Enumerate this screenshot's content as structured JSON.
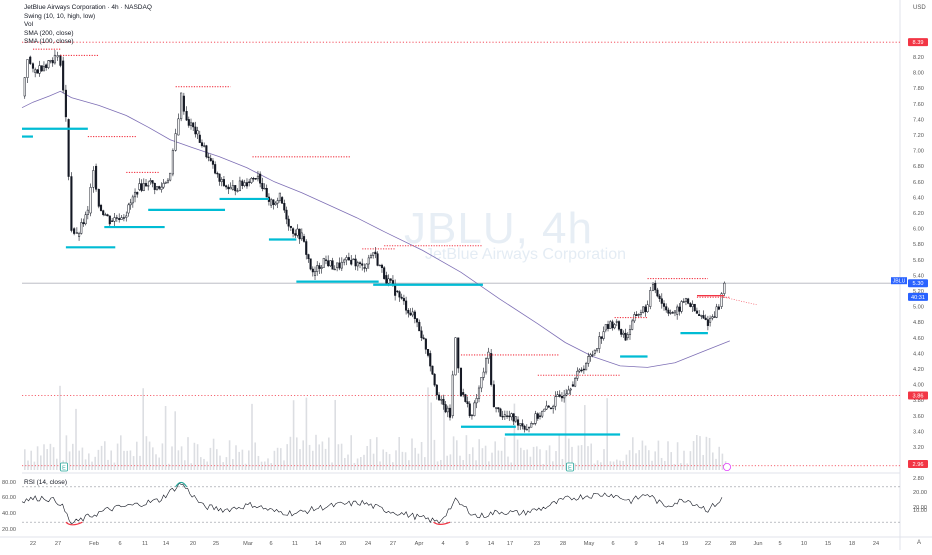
{
  "header": {
    "title": "JetBlue Airways Corporation · 4h · NASDAQ",
    "indicators": [
      "Swing (10, 10, high, low)",
      "Vol",
      "SMA (200, close)",
      "SMA (100, close)"
    ]
  },
  "watermark": {
    "ticker": "JBLU, 4h",
    "name": "JetBlue Airways Corporation"
  },
  "currency": "USD",
  "corner_label": "A",
  "rsi_panel": {
    "label": "RSI (14, close)",
    "left_ticks": [
      "80.00",
      "60.00",
      "40.00",
      "20.00"
    ],
    "right_ticks": [
      "20.00",
      "10.00"
    ]
  },
  "chart_data": {
    "type": "candlestick",
    "symbol": "JBLU",
    "timeframe": "4h",
    "y_ticks": [
      "8.20",
      "8.00",
      "7.80",
      "7.60",
      "7.40",
      "7.20",
      "7.00",
      "6.80",
      "6.60",
      "6.40",
      "6.20",
      "6.00",
      "5.80",
      "5.60",
      "5.40",
      "5.20",
      "5.00",
      "4.80",
      "4.60",
      "4.40",
      "4.20",
      "4.00",
      "3.80",
      "3.60",
      "3.40",
      "3.20",
      "3.00",
      "2.80",
      "20.00"
    ],
    "x_ticks": [
      "22",
      "27",
      "Feb",
      "6",
      "11",
      "14",
      "20",
      "25",
      "Mar",
      "6",
      "11",
      "14",
      "20",
      "24",
      "27",
      "Apr",
      "4",
      "9",
      "14",
      "17",
      "23",
      "28",
      "May",
      "6",
      "9",
      "14",
      "19",
      "22",
      "28",
      "Jun",
      "5",
      "10",
      "15",
      "18",
      "24"
    ],
    "price_badges": [
      {
        "label": "8.39",
        "value": 8.39,
        "color": "#f23645"
      },
      {
        "label": "JBLU",
        "value": 5.3,
        "color": "#2962ff"
      },
      {
        "label": "5.30",
        "value": 5.3,
        "color": "#2962ff"
      },
      {
        "label": "40:31",
        "value": 5.17,
        "color": "#2962ff"
      },
      {
        "label": "3.86",
        "value": 3.86,
        "color": "#f23645"
      },
      {
        "label": "2.96",
        "value": 2.96,
        "color": "#f23645"
      }
    ],
    "swing_highs": [
      {
        "x1": "Jan 22",
        "x2": "Jan 27",
        "y": 8.3
      },
      {
        "x1": "Jan 27",
        "x2": "Feb 3",
        "y": 8.22
      },
      {
        "x1": "Feb 1",
        "x2": "Feb 10",
        "y": 7.18
      },
      {
        "x1": "Feb 8",
        "x2": "Feb 14",
        "y": 6.72
      },
      {
        "x1": "Feb 17",
        "x2": "Feb 27",
        "y": 7.82
      },
      {
        "x1": "Mar 2",
        "x2": "Mar 20",
        "y": 6.92
      },
      {
        "x1": "Mar 22",
        "x2": "Mar 28",
        "y": 5.74
      },
      {
        "x1": "Mar 26",
        "x2": "Apr 13",
        "y": 5.78
      },
      {
        "x1": "Apr 9",
        "x2": "Apr 27",
        "y": 4.38
      },
      {
        "x1": "Apr 23",
        "x2": "May 8",
        "y": 4.12
      },
      {
        "x1": "May 7",
        "x2": "May 13",
        "y": 4.86
      },
      {
        "x1": "May 13",
        "x2": "May 24",
        "y": 5.36
      },
      {
        "x1": "May 22",
        "x2": "May 28",
        "y": 5.12
      }
    ],
    "swing_lows": [
      {
        "x1": "Jan 20",
        "x2": "Feb 1",
        "y": 7.28
      },
      {
        "x1": "Jan 20",
        "x2": "Jan 22",
        "y": 7.18
      },
      {
        "x1": "Jan 28",
        "x2": "Feb 6",
        "y": 5.76
      },
      {
        "x1": "Feb 4",
        "x2": "Feb 15",
        "y": 6.02
      },
      {
        "x1": "Feb 12",
        "x2": "Feb 26",
        "y": 6.24
      },
      {
        "x1": "Feb 25",
        "x2": "Mar 5",
        "y": 6.38
      },
      {
        "x1": "Mar 5",
        "x2": "Mar 10",
        "y": 5.86
      },
      {
        "x1": "Mar 10",
        "x2": "Mar 25",
        "y": 5.32
      },
      {
        "x1": "Mar 24",
        "x2": "Apr 13",
        "y": 5.28
      },
      {
        "x1": "Apr 9",
        "x2": "Apr 19",
        "y": 3.46
      },
      {
        "x1": "Apr 17",
        "x2": "May 8",
        "y": 3.36
      },
      {
        "x1": "May 8",
        "x2": "May 13",
        "y": 4.36
      },
      {
        "x1": "May 19",
        "x2": "May 24",
        "y": 4.66
      }
    ],
    "horizontal_levels": [
      {
        "y": 8.39,
        "style": "dotted",
        "color": "#f23645"
      },
      {
        "y": 3.86,
        "style": "dotted",
        "color": "#f23645"
      },
      {
        "y": 2.96,
        "style": "dotted",
        "color": "#f23645"
      },
      {
        "y": 5.3,
        "style": "solid",
        "color": "#b2b5be"
      }
    ],
    "sma_200": [
      [
        "Jan 20",
        7.55
      ],
      [
        "Jan 22",
        7.62
      ],
      [
        "Jan 25",
        7.7
      ],
      [
        "Jan 27",
        7.76
      ],
      [
        "Jan 29",
        7.68
      ],
      [
        "Feb 3",
        7.58
      ],
      [
        "Feb 8",
        7.45
      ],
      [
        "Feb 12",
        7.3
      ],
      [
        "Feb 16",
        7.14
      ],
      [
        "Feb 20",
        7.04
      ],
      [
        "Feb 25",
        6.92
      ],
      [
        "Mar 1",
        6.78
      ],
      [
        "Mar 6",
        6.6
      ],
      [
        "Mar 11",
        6.46
      ],
      [
        "Mar 16",
        6.3
      ],
      [
        "Mar 21",
        6.14
      ],
      [
        "Mar 26",
        5.96
      ],
      [
        "Apr 2",
        5.72
      ],
      [
        "Apr 9",
        5.44
      ],
      [
        "Apr 16",
        5.1
      ],
      [
        "Apr 23",
        4.78
      ],
      [
        "Apr 28",
        4.54
      ],
      [
        "May 3",
        4.36
      ],
      [
        "May 8",
        4.24
      ],
      [
        "May 13",
        4.22
      ],
      [
        "May 18",
        4.28
      ],
      [
        "May 23",
        4.42
      ],
      [
        "May 28",
        4.56
      ]
    ],
    "candles_approx": {
      "note": "close path",
      "points": [
        [
          "Jan 20",
          7.7
        ],
        [
          "Jan 21",
          8.2
        ],
        [
          "Jan 22",
          8.0
        ],
        [
          "Jan 24",
          8.1
        ],
        [
          "Jan 26",
          8.2
        ],
        [
          "Jan 27",
          8.15
        ],
        [
          "Jan 28",
          7.4
        ],
        [
          "Jan 29",
          6.0
        ],
        [
          "Jan 30",
          5.9
        ],
        [
          "Feb 1",
          6.2
        ],
        [
          "Feb 2",
          6.8
        ],
        [
          "Feb 3",
          6.3
        ],
        [
          "Feb 5",
          6.1
        ],
        [
          "Feb 8",
          6.2
        ],
        [
          "Feb 10",
          6.5
        ],
        [
          "Feb 12",
          6.6
        ],
        [
          "Feb 14",
          6.5
        ],
        [
          "Feb 16",
          6.7
        ],
        [
          "Feb 17",
          7.2
        ],
        [
          "Feb 18",
          7.7
        ],
        [
          "Feb 19",
          7.4
        ],
        [
          "Feb 21",
          7.2
        ],
        [
          "Feb 23",
          6.9
        ],
        [
          "Feb 25",
          6.6
        ],
        [
          "Feb 27",
          6.5
        ],
        [
          "Mar 1",
          6.6
        ],
        [
          "Mar 3",
          6.7
        ],
        [
          "Mar 5",
          6.3
        ],
        [
          "Mar 7",
          6.4
        ],
        [
          "Mar 9",
          6.0
        ],
        [
          "Mar 11",
          5.9
        ],
        [
          "Mar 13",
          5.4
        ],
        [
          "Mar 15",
          5.6
        ],
        [
          "Mar 17",
          5.5
        ],
        [
          "Mar 20",
          5.6
        ],
        [
          "Mar 22",
          5.5
        ],
        [
          "Mar 24",
          5.7
        ],
        [
          "Mar 26",
          5.4
        ],
        [
          "Mar 28",
          5.2
        ],
        [
          "Apr 1",
          4.8
        ],
        [
          "Apr 3",
          4.4
        ],
        [
          "Apr 5",
          3.8
        ],
        [
          "Apr 7",
          3.6
        ],
        [
          "Apr 8",
          4.6
        ],
        [
          "Apr 9",
          3.9
        ],
        [
          "Apr 11",
          3.6
        ],
        [
          "Apr 14",
          4.4
        ],
        [
          "Apr 15",
          3.7
        ],
        [
          "Apr 17",
          3.6
        ],
        [
          "Apr 19",
          3.55
        ],
        [
          "Apr 21",
          3.45
        ],
        [
          "Apr 23",
          3.6
        ],
        [
          "Apr 25",
          3.7
        ],
        [
          "Apr 27",
          3.85
        ],
        [
          "Apr 29",
          4.0
        ],
        [
          "May 1",
          4.2
        ],
        [
          "May 3",
          4.4
        ],
        [
          "May 5",
          4.7
        ],
        [
          "May 7",
          4.8
        ],
        [
          "May 9",
          4.6
        ],
        [
          "May 11",
          4.9
        ],
        [
          "May 13",
          5.0
        ],
        [
          "May 14",
          5.3
        ],
        [
          "May 16",
          5.0
        ],
        [
          "May 18",
          4.9
        ],
        [
          "May 20",
          5.1
        ],
        [
          "May 22",
          4.9
        ],
        [
          "May 24",
          4.8
        ],
        [
          "May 26",
          5.0
        ],
        [
          "May 27",
          5.3
        ]
      ]
    },
    "rsi_values": [
      [
        "Jan 20",
        55
      ],
      [
        "Jan 24",
        58
      ],
      [
        "Jan 27",
        52
      ],
      [
        "Jan 29",
        28
      ],
      [
        "Feb 1",
        36
      ],
      [
        "Feb 5",
        45
      ],
      [
        "Feb 10",
        50
      ],
      [
        "Feb 14",
        55
      ],
      [
        "Feb 18",
        74
      ],
      [
        "Feb 22",
        48
      ],
      [
        "Feb 26",
        44
      ],
      [
        "Mar 2",
        50
      ],
      [
        "Mar 6",
        42
      ],
      [
        "Mar 10",
        40
      ],
      [
        "Mar 14",
        46
      ],
      [
        "Mar 18",
        50
      ],
      [
        "Mar 22",
        52
      ],
      [
        "Mar 26",
        44
      ],
      [
        "Apr 1",
        36
      ],
      [
        "Apr 5",
        30
      ],
      [
        "Apr 8",
        54
      ],
      [
        "Apr 12",
        36
      ],
      [
        "Apr 16",
        42
      ],
      [
        "Apr 20",
        40
      ],
      [
        "Apr 24",
        46
      ],
      [
        "Apr 28",
        56
      ],
      [
        "May 2",
        60
      ],
      [
        "May 6",
        62
      ],
      [
        "May 10",
        54
      ],
      [
        "May 13",
        62
      ],
      [
        "May 16",
        48
      ],
      [
        "May 20",
        56
      ],
      [
        "May 24",
        44
      ],
      [
        "May 27",
        58
      ]
    ]
  }
}
